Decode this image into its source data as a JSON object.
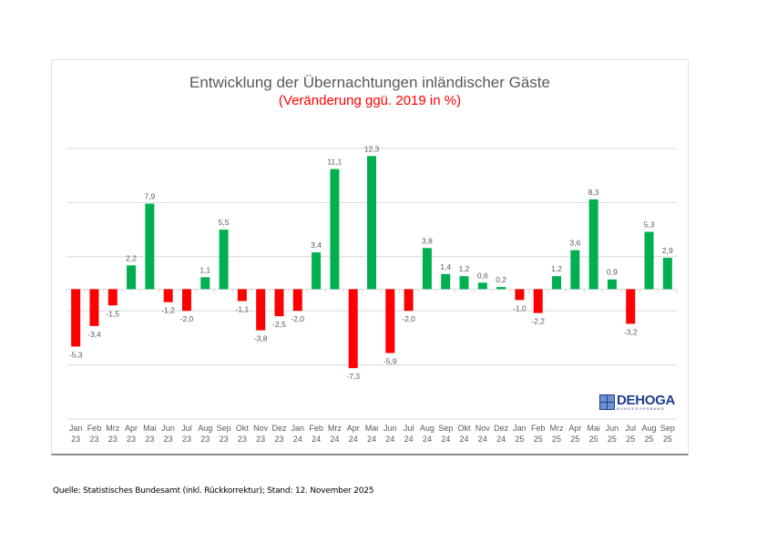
{
  "chart_data": {
    "type": "bar",
    "title": "Entwicklung der Übernachtungen inländischer Gäste",
    "subtitle": "(Veränderung ggü. 2019 in %)",
    "xlabel": "",
    "ylabel": "",
    "ylim": [
      -12,
      13
    ],
    "ytick_step": 5,
    "grid": true,
    "legend": "none",
    "categories": [
      {
        "month": "Jan",
        "year": "23"
      },
      {
        "month": "Feb",
        "year": "23"
      },
      {
        "month": "Mrz",
        "year": "23"
      },
      {
        "month": "Apr",
        "year": "23"
      },
      {
        "month": "Mai",
        "year": "23"
      },
      {
        "month": "Jun",
        "year": "23"
      },
      {
        "month": "Jul",
        "year": "23"
      },
      {
        "month": "Aug",
        "year": "23"
      },
      {
        "month": "Sep",
        "year": "23"
      },
      {
        "month": "Okt",
        "year": "23"
      },
      {
        "month": "Nov",
        "year": "23"
      },
      {
        "month": "Dez",
        "year": "23"
      },
      {
        "month": "Jan",
        "year": "24"
      },
      {
        "month": "Feb",
        "year": "24"
      },
      {
        "month": "Mrz",
        "year": "24"
      },
      {
        "month": "Apr",
        "year": "24"
      },
      {
        "month": "Mai",
        "year": "24"
      },
      {
        "month": "Jun",
        "year": "24"
      },
      {
        "month": "Jul",
        "year": "24"
      },
      {
        "month": "Aug",
        "year": "24"
      },
      {
        "month": "Sep",
        "year": "24"
      },
      {
        "month": "Okt",
        "year": "24"
      },
      {
        "month": "Nov",
        "year": "24"
      },
      {
        "month": "Dez",
        "year": "24"
      },
      {
        "month": "Jan",
        "year": "25"
      },
      {
        "month": "Feb",
        "year": "25"
      },
      {
        "month": "Mrz",
        "year": "25"
      },
      {
        "month": "Apr",
        "year": "25"
      },
      {
        "month": "Mai",
        "year": "25"
      },
      {
        "month": "Jun",
        "year": "25"
      },
      {
        "month": "Jul",
        "year": "25"
      },
      {
        "month": "Aug",
        "year": "25"
      },
      {
        "month": "Sep",
        "year": "25"
      }
    ],
    "values": [
      -5.3,
      -3.4,
      -1.5,
      2.2,
      7.9,
      -1.2,
      -2.0,
      1.1,
      5.5,
      -1.1,
      -3.8,
      -2.5,
      -2.0,
      3.4,
      11.1,
      -7.3,
      12.3,
      -5.9,
      -2.0,
      3.8,
      1.4,
      1.2,
      0.6,
      0.2,
      -1.0,
      -2.2,
      1.2,
      3.6,
      8.3,
      0.9,
      -3.2,
      5.3,
      2.9
    ],
    "labels": [
      "-5,3",
      "-3,4",
      "-1,5",
      "2,2",
      "7,9",
      "-1,2",
      "-2,0",
      "1,1",
      "5,5",
      "-1,1",
      "-3,8",
      "-2,5",
      "-2,0",
      "3,4",
      "11,1",
      "-7,3",
      "12,3",
      "-5,9",
      "-2,0",
      "3,8",
      "1,4",
      "1,2",
      "0,6",
      "0,2",
      "-1,0",
      "-2,2",
      "1,2",
      "3,6",
      "8,3",
      "0,9",
      "-3,2",
      "5,3",
      "2,9"
    ],
    "colors": {
      "positive": "#00b050",
      "negative": "#ff0000",
      "title": "#595959",
      "subtitle": "#ff0000",
      "grid": "#d9d9d9"
    }
  },
  "logo": {
    "name": "DEHOGA",
    "subtitle": "BUNDESVERBAND"
  },
  "source": "Quelle: Statistisches Bundesamt (inkl. Rückkorrektur); Stand: 12. November 2025"
}
